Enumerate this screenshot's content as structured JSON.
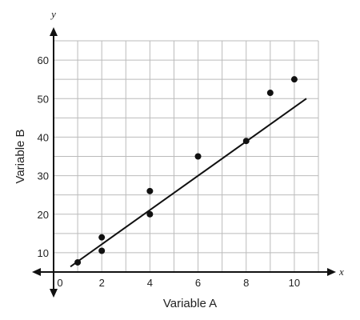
{
  "chart_data": {
    "type": "scatter",
    "xlabel": "Variable A",
    "ylabel": "Variable B",
    "x_axis_var": "x",
    "y_axis_var": "y",
    "origin_label": "0",
    "xlim": [
      0,
      11
    ],
    "ylim": [
      5,
      65
    ],
    "x_ticks": [
      2,
      4,
      6,
      8,
      10
    ],
    "y_ticks": [
      10,
      20,
      30,
      40,
      50,
      60
    ],
    "x_ticklabels": [
      "2",
      "4",
      "6",
      "8",
      "10"
    ],
    "y_ticklabels": [
      "10",
      "20",
      "30",
      "40",
      "50",
      "60"
    ],
    "grid": true,
    "series": [
      {
        "x": [
          1,
          2,
          2,
          4,
          4,
          6,
          8,
          9,
          10
        ],
        "y": [
          7.5,
          14,
          10.5,
          26,
          20,
          35,
          39,
          51.5,
          55
        ]
      }
    ],
    "trend_line": {
      "x": [
        0.7,
        10.5
      ],
      "y": [
        6.4,
        50
      ]
    },
    "colors": {
      "points": "#111111",
      "line": "#111111",
      "grid": "#bbbbbb",
      "axis": "#111111"
    }
  }
}
